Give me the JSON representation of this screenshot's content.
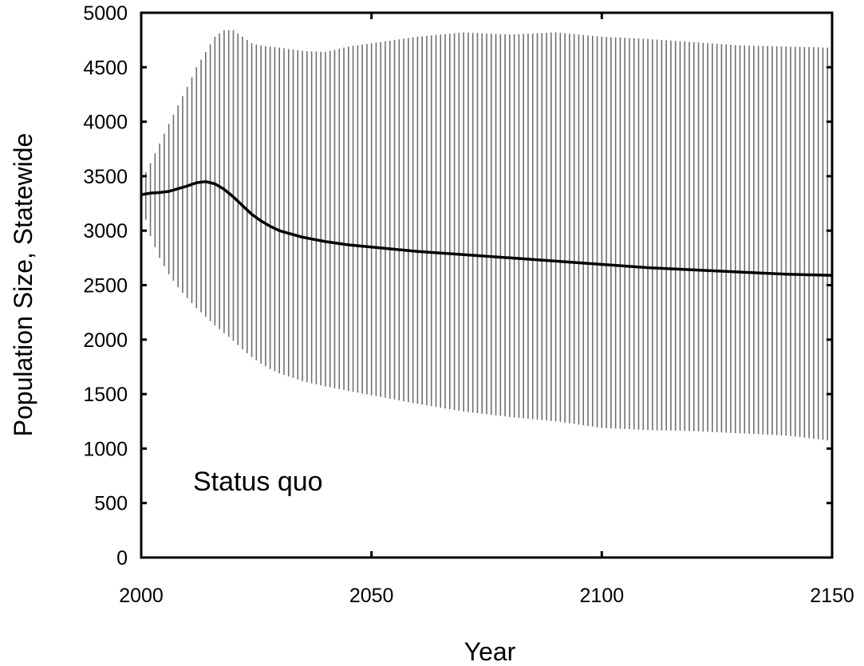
{
  "chart_data": {
    "type": "line",
    "title": "",
    "xlabel": "Year",
    "ylabel": "Population Size, Statewide",
    "annotation": "Status quo",
    "xlim": [
      2000,
      2150
    ],
    "ylim": [
      0,
      5000
    ],
    "x_ticks": [
      2000,
      2050,
      2100,
      2150
    ],
    "y_ticks": [
      0,
      500,
      1000,
      1500,
      2000,
      2500,
      3000,
      3500,
      4000,
      4500,
      5000
    ],
    "grid": false,
    "colors": {
      "line": "#000000",
      "band": "#6f6f6f"
    },
    "band_style": "vertical hatch lines",
    "series": [
      {
        "x": [
          2000,
          2002,
          2004,
          2006,
          2008,
          2010,
          2012,
          2014,
          2016,
          2018,
          2020,
          2022,
          2024,
          2026,
          2028,
          2030,
          2035,
          2040,
          2045,
          2050,
          2060,
          2070,
          2080,
          2090,
          2100,
          2110,
          2120,
          2130,
          2140,
          2150
        ],
        "mean": [
          3330,
          3345,
          3350,
          3360,
          3385,
          3410,
          3440,
          3450,
          3430,
          3380,
          3310,
          3230,
          3150,
          3090,
          3040,
          3000,
          2940,
          2900,
          2870,
          2850,
          2810,
          2780,
          2750,
          2720,
          2690,
          2660,
          2640,
          2620,
          2600,
          2590
        ],
        "upper": [
          3450,
          3620,
          3800,
          3980,
          4150,
          4320,
          4500,
          4640,
          4780,
          4840,
          4840,
          4780,
          4720,
          4700,
          4690,
          4680,
          4650,
          4640,
          4690,
          4720,
          4780,
          4820,
          4800,
          4820,
          4780,
          4760,
          4730,
          4700,
          4690,
          4680
        ],
        "lower": [
          3250,
          2950,
          2750,
          2600,
          2480,
          2380,
          2290,
          2210,
          2130,
          2060,
          1990,
          1910,
          1840,
          1780,
          1730,
          1690,
          1620,
          1570,
          1530,
          1490,
          1410,
          1340,
          1290,
          1250,
          1190,
          1170,
          1160,
          1140,
          1120,
          1070
        ]
      }
    ]
  }
}
